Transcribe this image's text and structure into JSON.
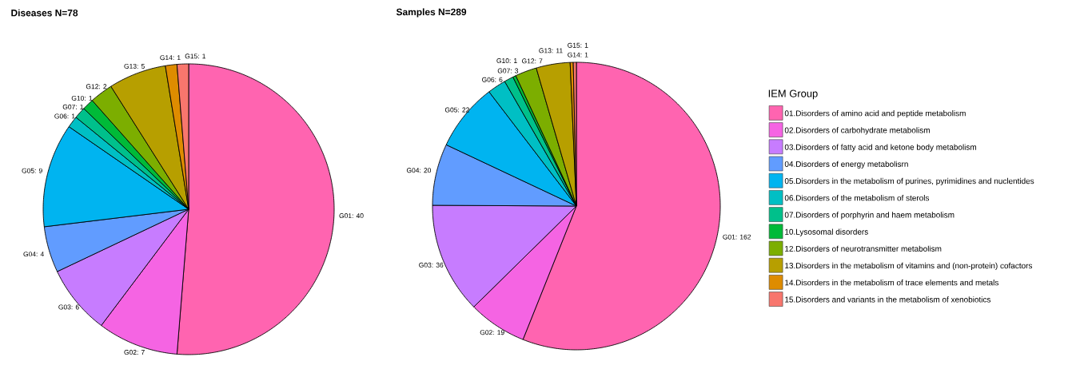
{
  "chart_data": [
    {
      "type": "pie",
      "title": "Diseases N=78",
      "categories": [
        null,
        null,
        null,
        null,
        null,
        null,
        null,
        null,
        null,
        null,
        null,
        null
      ],
      "values": [
        40,
        7,
        6,
        4,
        9,
        1,
        1,
        1,
        2,
        5,
        1,
        1
      ],
      "value_labels": [
        "G01: 40",
        "G02: 7",
        "G03: 6",
        "G04: 4",
        "G05: 9",
        "G06: 1",
        "G07: 1",
        "G10: 1",
        "G12: 2",
        "G13: 5",
        "G14: 1",
        "G15: 1"
      ],
      "colors": [
        "#ff64b0",
        "#f564e3",
        "#c77cff",
        "#619cff",
        "#00b4f0",
        "#00bfc4",
        "#00c08b",
        "#00ba38",
        "#7cae00",
        "#b79f00",
        "#de8c00",
        "#f8766d"
      ]
    },
    {
      "type": "pie",
      "title": "Samples N=289",
      "legend_title": "IEM Group",
      "legend": "right",
      "categories": [
        "01.Disorders of amino acid and peptide metabolism",
        "02.Disorders of carbohydrate metabolism",
        "03.Disorders of fatty acid and ketone body metabolism",
        "04.Disorders of energy metabolisrn",
        "05.Disorders in the metabolism of purines, pyrimidines and nuclentides",
        "06.Disorders of the metabolism of sterols",
        "07.Disorders of porphyrin and haem metabolism",
        "10.Lysosomal disorders",
        "12.Disorders of neurotransmitter metabolism",
        "13.Disorders in the metabolism of vitamins and (non-protein) cofactors",
        "14.Disorders in the metabolism of trace elements and metals",
        "15.Disorders and variants in the metabolism of xenobiotics"
      ],
      "values": [
        162,
        19,
        36,
        20,
        22,
        6,
        3,
        1,
        7,
        11,
        1,
        1
      ],
      "value_labels": [
        "G01: 162",
        "G02: 19",
        "G03: 36",
        "G04: 20",
        "G05: 22",
        "G06: 6",
        "G07: 3",
        "G10: 1",
        "G12: 7",
        "G13: 11",
        "G14: 1",
        "G15: 1"
      ],
      "colors": [
        "#ff64b0",
        "#f564e3",
        "#c77cff",
        "#619cff",
        "#00b4f0",
        "#00bfc4",
        "#00c08b",
        "#00ba38",
        "#7cae00",
        "#b79f00",
        "#de8c00",
        "#f8766d"
      ]
    }
  ]
}
